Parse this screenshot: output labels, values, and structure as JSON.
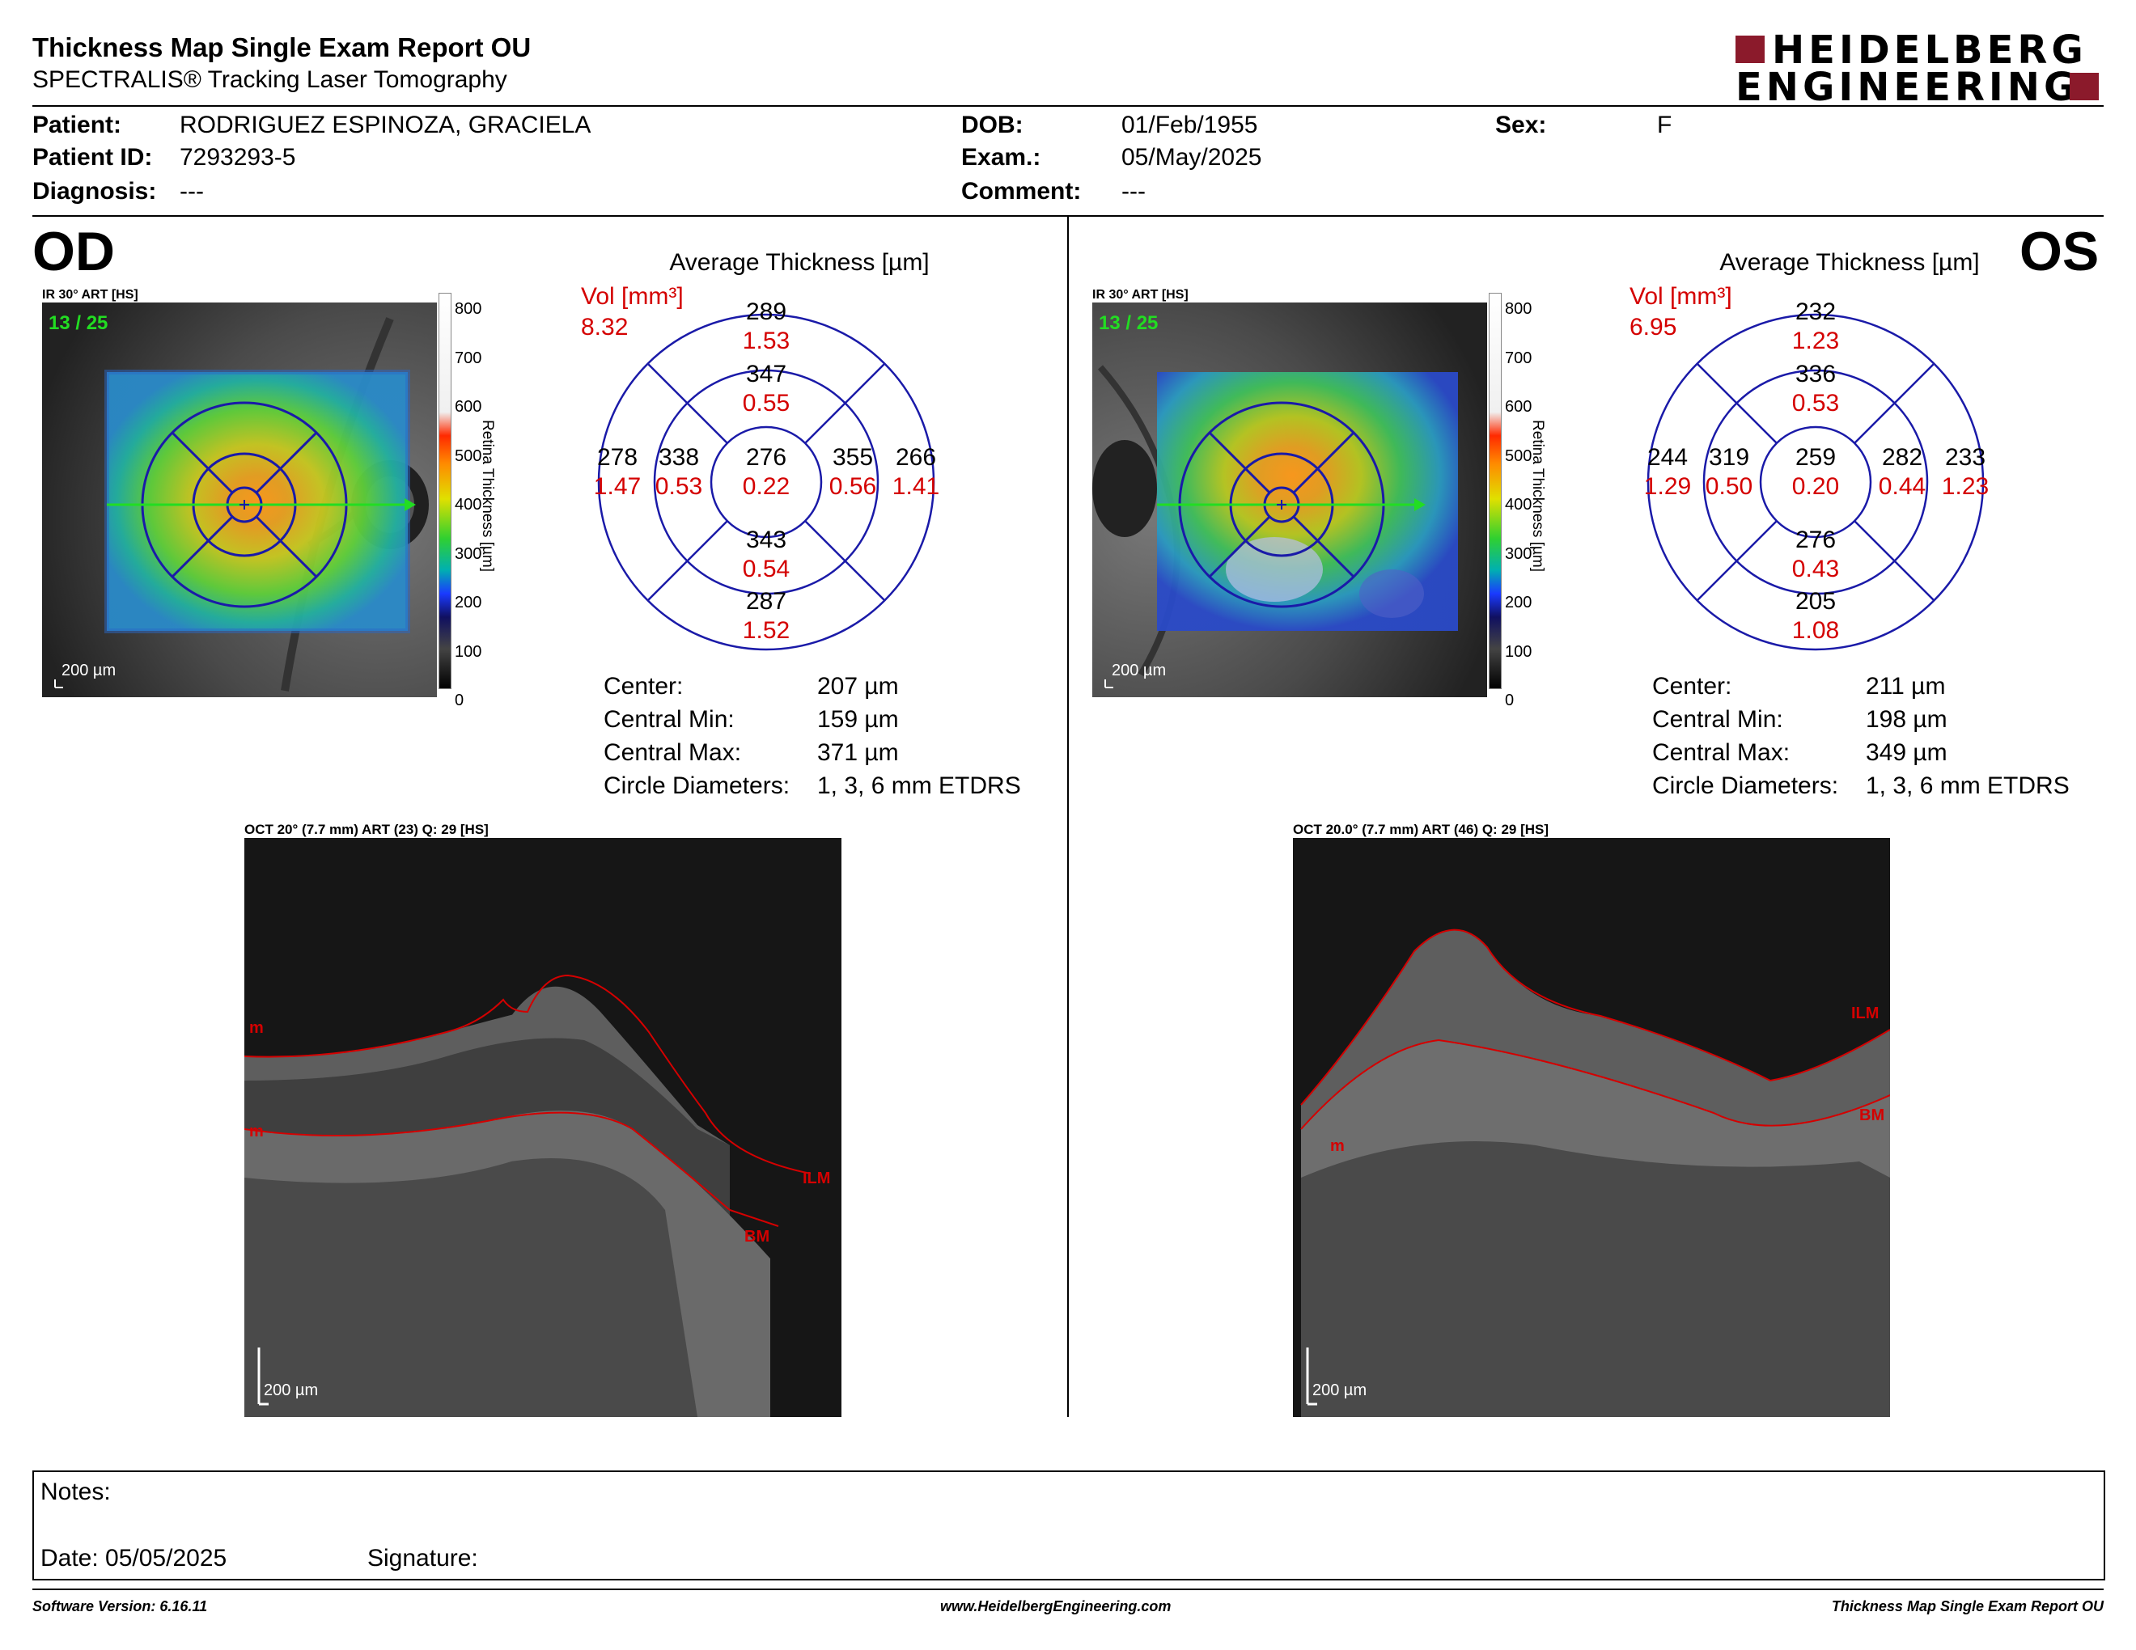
{
  "header": {
    "title": "Thickness Map Single Exam Report OU",
    "subtitle": "SPECTRALIS® Tracking Laser Tomography",
    "logo_line1": "HEIDELBERG",
    "logo_line2": "ENGINEERING",
    "logo_color": "#8b1a2b"
  },
  "patient": {
    "patient_label": "Patient:",
    "patient_value": "RODRIGUEZ ESPINOZA, GRACIELA",
    "id_label": "Patient ID:",
    "id_value": "7293293-5",
    "diagnosis_label": "Diagnosis:",
    "diagnosis_value": "---",
    "dob_label": "DOB:",
    "dob_value": "01/Feb/1955",
    "exam_label": "Exam.:",
    "exam_value": "05/May/2025",
    "comment_label": "Comment:",
    "comment_value": "---",
    "sex_label": "Sex:",
    "sex_value": "F"
  },
  "scale": {
    "ticks": [
      "800",
      "700",
      "600",
      "500",
      "400",
      "300",
      "200",
      "100",
      "0"
    ],
    "label": "Retina Thickness [µm]"
  },
  "od": {
    "eye": "OD",
    "ir_label": "IR 30° ART [HS]",
    "frame": "13 / 25",
    "scalebar": "200 µm",
    "avg_title": "Average Thickness [µm]",
    "vol_label": "Vol [mm³]",
    "vol_value": "8.32",
    "sectors": {
      "outer_sup": [
        "289",
        "1.53"
      ],
      "inner_sup": [
        "347",
        "0.55"
      ],
      "outer_temp": [
        "278",
        "1.47"
      ],
      "inner_temp": [
        "338",
        "0.53"
      ],
      "center": [
        "276",
        "0.22"
      ],
      "inner_nas": [
        "355",
        "0.56"
      ],
      "outer_nas": [
        "266",
        "1.41"
      ],
      "inner_inf": [
        "343",
        "0.54"
      ],
      "outer_inf": [
        "287",
        "1.52"
      ]
    },
    "stats": [
      {
        "label": "Center:",
        "value": "207 µm"
      },
      {
        "label": "Central Min:",
        "value": "159 µm"
      },
      {
        "label": "Central Max:",
        "value": "371 µm"
      },
      {
        "label": "Circle Diameters:",
        "value": "1, 3, 6 mm ETDRS"
      }
    ],
    "oct_label": "OCT 20° (7.7 mm) ART (23) Q: 29 [HS]",
    "oct_scalebar": "200 µm",
    "oct_tags": {
      "ilm": "ILM",
      "bm": "BM",
      "m1": "m",
      "m2": "m"
    }
  },
  "os": {
    "eye": "OS",
    "ir_label": "IR 30° ART [HS]",
    "frame": "13 / 25",
    "scalebar": "200 µm",
    "avg_title": "Average Thickness [µm]",
    "vol_label": "Vol [mm³]",
    "vol_value": "6.95",
    "sectors": {
      "outer_sup": [
        "232",
        "1.23"
      ],
      "inner_sup": [
        "336",
        "0.53"
      ],
      "outer_temp": [
        "244",
        "1.29"
      ],
      "inner_temp": [
        "319",
        "0.50"
      ],
      "center": [
        "259",
        "0.20"
      ],
      "inner_nas": [
        "282",
        "0.44"
      ],
      "outer_nas": [
        "233",
        "1.23"
      ],
      "inner_inf": [
        "276",
        "0.43"
      ],
      "outer_inf": [
        "205",
        "1.08"
      ]
    },
    "stats": [
      {
        "label": "Center:",
        "value": "211 µm"
      },
      {
        "label": "Central Min:",
        "value": "198 µm"
      },
      {
        "label": "Central Max:",
        "value": "349 µm"
      },
      {
        "label": "Circle Diameters:",
        "value": "1, 3, 6 mm ETDRS"
      }
    ],
    "oct_label": "OCT 20.0° (7.7 mm) ART (46) Q: 29 [HS]",
    "oct_scalebar": "200 µm",
    "oct_tags": {
      "ilm": "ILM",
      "bm": "BM",
      "m1": "m"
    }
  },
  "notes": {
    "notes_label": "Notes:",
    "date_label": "Date: 05/05/2025",
    "signature_label": "Signature:"
  },
  "footer": {
    "software": "Software Version: 6.16.11",
    "website": "www.HeidelbergEngineering.com",
    "report": "Thickness Map Single Exam Report OU"
  },
  "colors": {
    "grid_blue": "#1a1aa8",
    "value_red": "#d40000",
    "frame_green": "#22dd22"
  }
}
